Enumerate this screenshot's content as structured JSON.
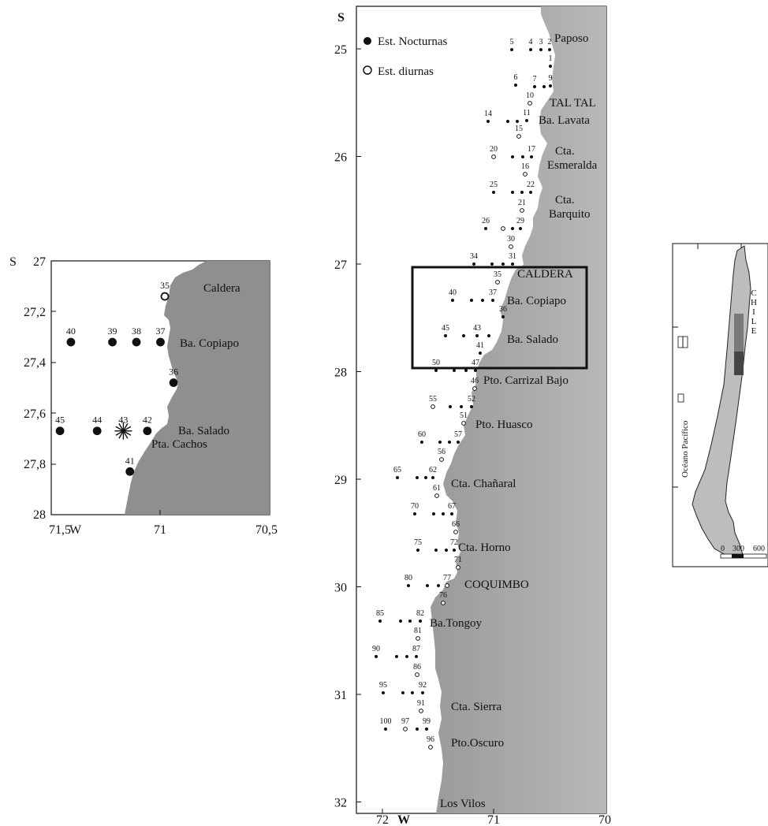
{
  "legend": {
    "night_label": "Est. Nocturnas",
    "day_label": "Est. diurnas"
  },
  "main_map": {
    "lat_range": [
      25,
      32
    ],
    "lon_range": [
      72,
      70
    ],
    "lat_tick_labels": [
      "25",
      "26",
      "27",
      "28",
      "29",
      "30",
      "31",
      "32"
    ],
    "lat_unit": "S",
    "lon_tick_labels": [
      "72",
      "71",
      "70"
    ],
    "lon_unit": "W",
    "places": [
      {
        "name": "Paposo",
        "lat": 25.0
      },
      {
        "name": "TAL TAL",
        "lat": 25.4
      },
      {
        "name": "Ba. Lavata",
        "lat": 25.6
      },
      {
        "name": "Cta.",
        "lat": 26.0
      },
      {
        "name": "Esmeralda",
        "lat": 26.1
      },
      {
        "name": "Cta.",
        "lat": 26.4
      },
      {
        "name": "Barquito",
        "lat": 26.55
      },
      {
        "name": "CALDERA",
        "lat": 27.07
      },
      {
        "name": "Ba. Copiapo",
        "lat": 27.35
      },
      {
        "name": "Ba. Salado",
        "lat": 27.7
      },
      {
        "name": "Pto. Carrizal Bajo",
        "lat": 28.05
      },
      {
        "name": "Pto. Huasco",
        "lat": 28.45
      },
      {
        "name": "Cta. Chañaral",
        "lat": 29.0
      },
      {
        "name": "Cta. Horno",
        "lat": 29.65
      },
      {
        "name": "COQUIMBO",
        "lat": 29.95
      },
      {
        "name": "Ba.Tongoy",
        "lat": 30.35
      },
      {
        "name": "Cta. Sierra",
        "lat": 31.12
      },
      {
        "name": "Pto.Oscuro",
        "lat": 31.45
      },
      {
        "name": "Los Vilos",
        "lat": 31.9
      }
    ]
  },
  "inset_map": {
    "lat_range": [
      27,
      28
    ],
    "lon_range": [
      71.5,
      70.5
    ],
    "lat_tick_labels": [
      "27",
      "27,2",
      "27,4",
      "27,6",
      "27,8",
      "28"
    ],
    "lat_unit": "S",
    "lon_tick_labels": [
      "71,5",
      "71",
      "70,5"
    ],
    "lon_unit": "W",
    "places": [
      "Caldera",
      "Ba. Copiapo",
      "Ba. Salado",
      "Pta. Cachos"
    ],
    "stations": [
      {
        "id": "35",
        "lat": 27.14,
        "lon": 70.98,
        "type": "day"
      },
      {
        "id": "40",
        "lat": 27.32,
        "lon": 71.41,
        "type": "night"
      },
      {
        "id": "39",
        "lat": 27.32,
        "lon": 71.22,
        "type": "night"
      },
      {
        "id": "38",
        "lat": 27.32,
        "lon": 71.11,
        "type": "night"
      },
      {
        "id": "37",
        "lat": 27.32,
        "lon": 71.0,
        "type": "night"
      },
      {
        "id": "36",
        "lat": 27.48,
        "lon": 70.94,
        "type": "night"
      },
      {
        "id": "45",
        "lat": 27.67,
        "lon": 71.46,
        "type": "night"
      },
      {
        "id": "44",
        "lat": 27.67,
        "lon": 71.29,
        "type": "night"
      },
      {
        "id": "43",
        "lat": 27.67,
        "lon": 71.17,
        "type": "star"
      },
      {
        "id": "42",
        "lat": 27.67,
        "lon": 71.06,
        "type": "night"
      },
      {
        "id": "41",
        "lat": 27.83,
        "lon": 71.14,
        "type": "night"
      }
    ]
  },
  "overview_map": {
    "country_label": "CHILE",
    "ocean_label": "Océano Pacífico",
    "scale_labels": [
      "0",
      "300",
      "600"
    ]
  },
  "colors": {
    "land": "#a8a8a8",
    "land_dark": "#8c8c8c",
    "sea": "#ffffff",
    "frame": "#111111"
  }
}
